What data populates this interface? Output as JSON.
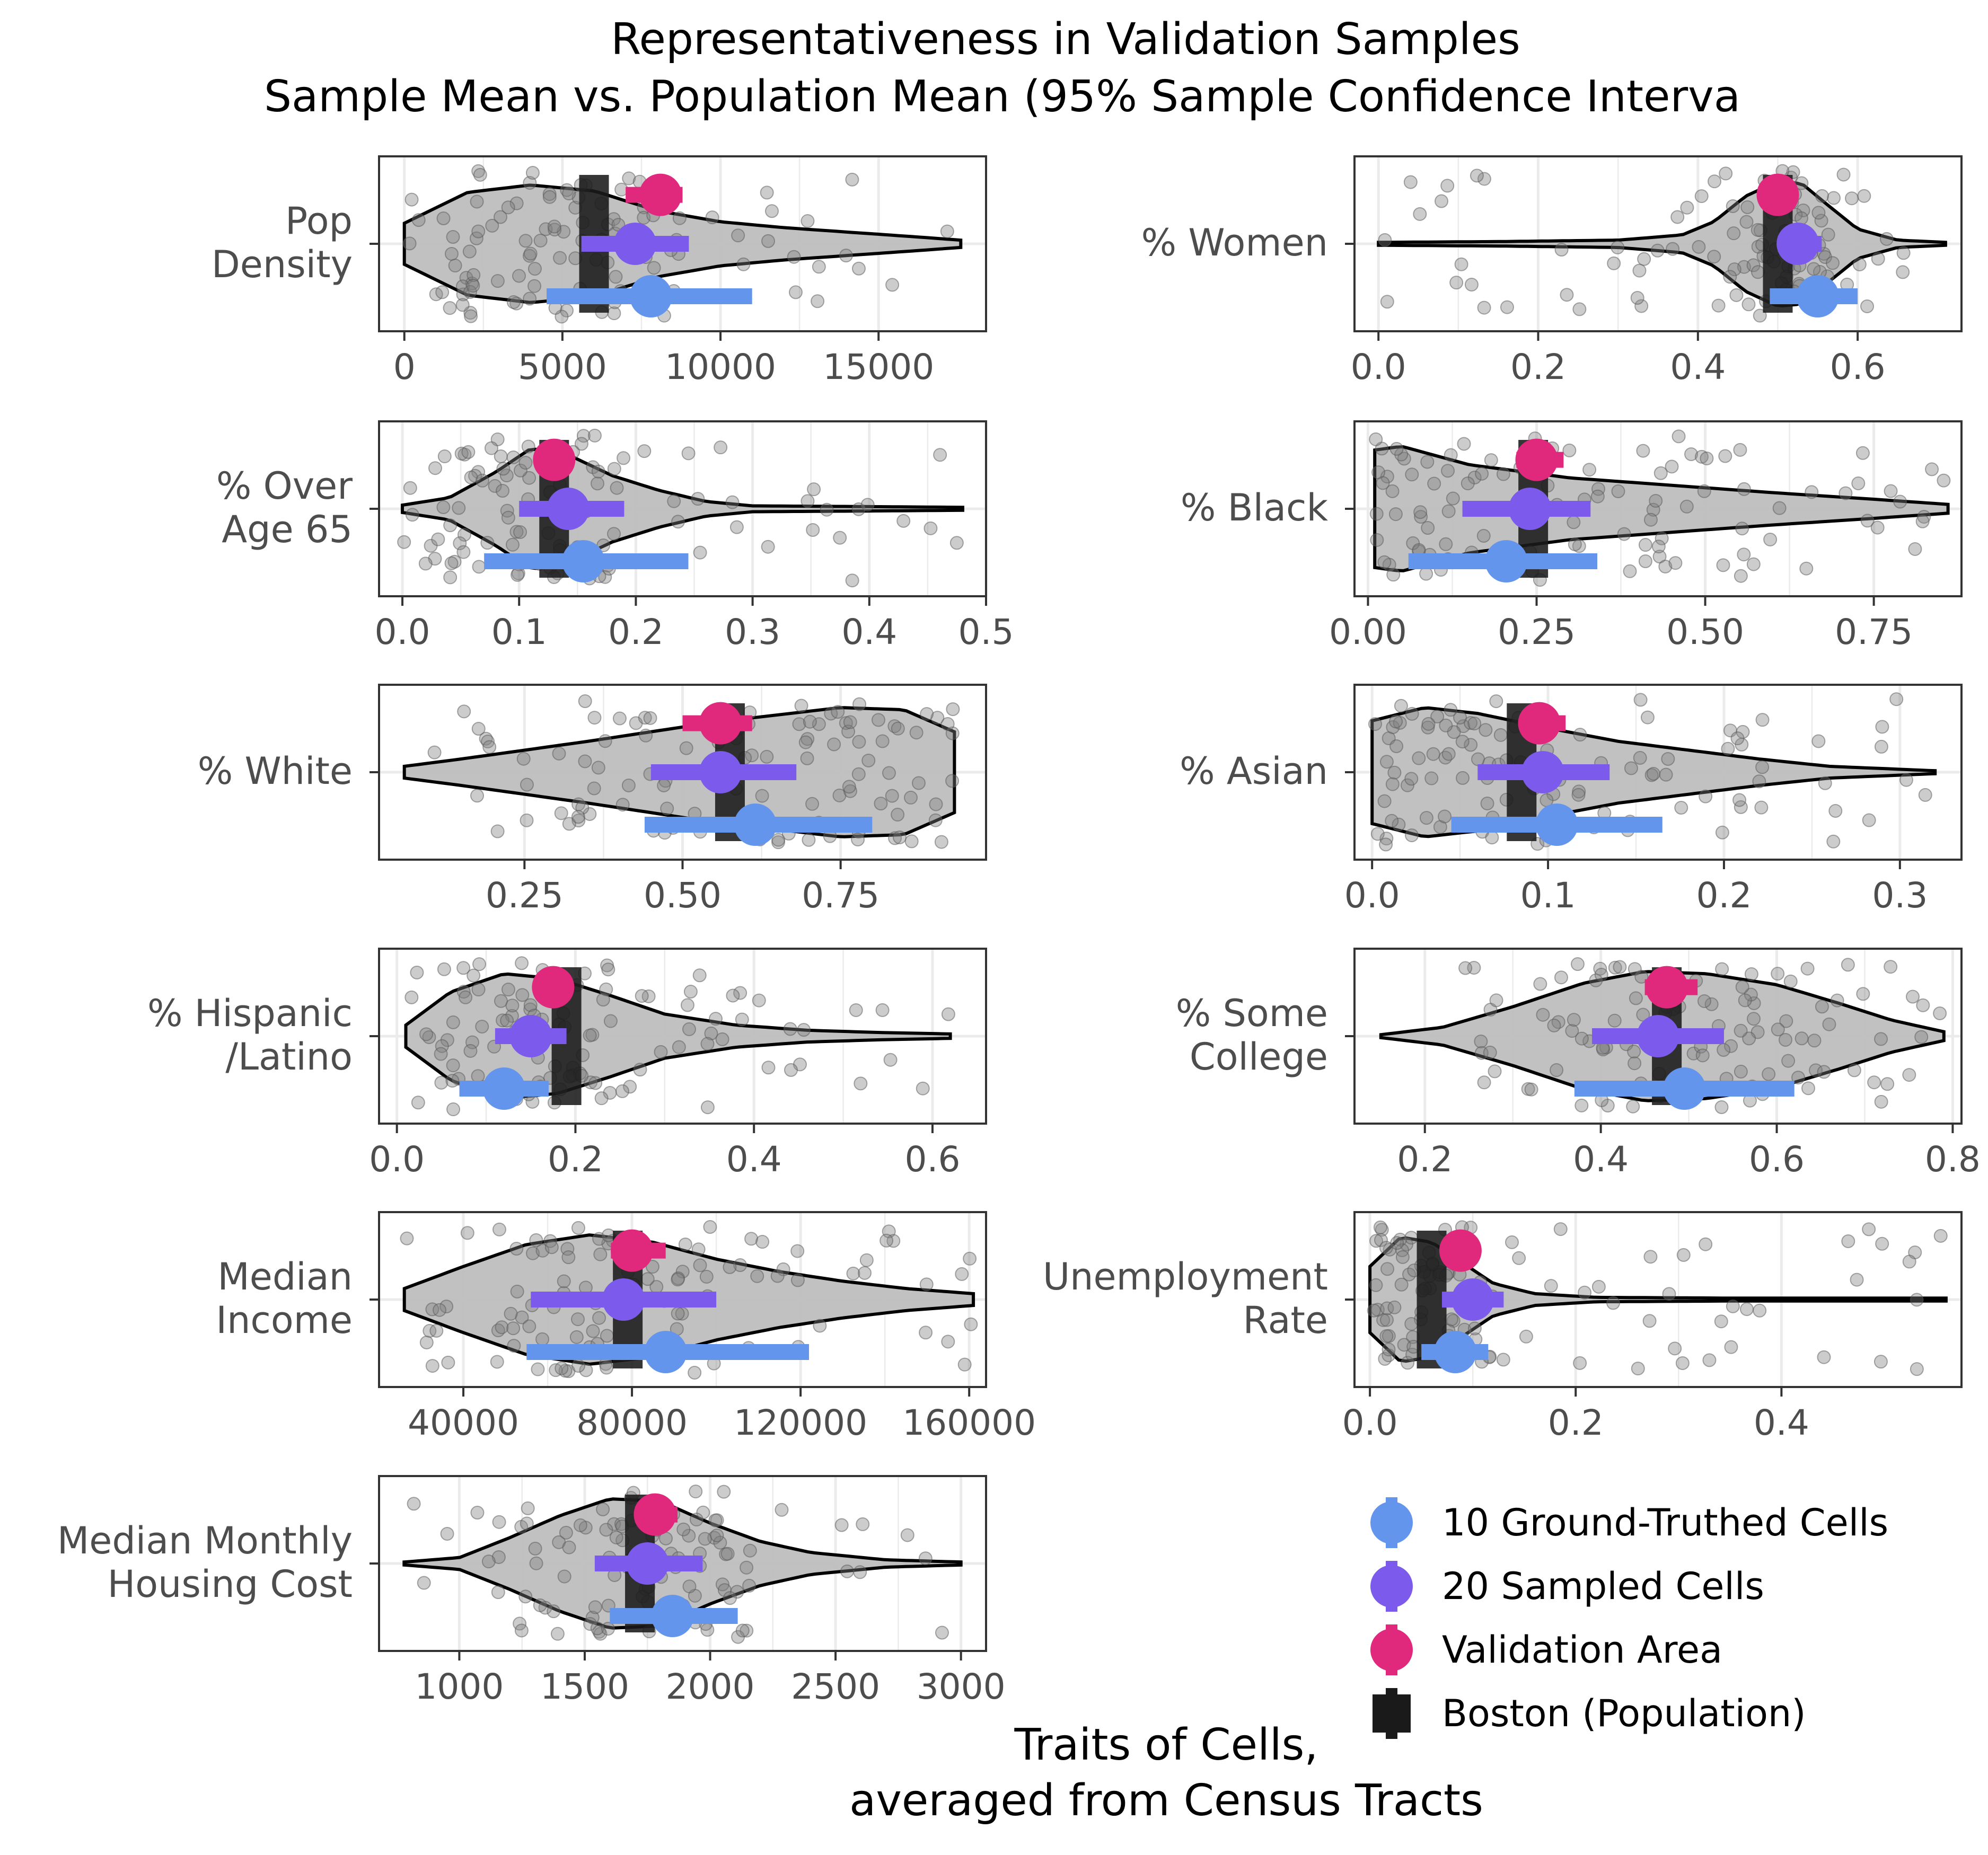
{
  "title_lines": [
    "Representativeness in Validation Samples",
    "Sample Mean vs. Population Mean (95% Sample Confidence Interva"
  ],
  "xlabel_lines": [
    "Traits of Cells,",
    "averaged from Census Tracts"
  ],
  "colors": {
    "ground_truthed": "#6495ED",
    "sampled": "#7B5AEC",
    "validation": "#E0287D",
    "population": "#1A1A1A",
    "violin_fill": "#BEBEBE",
    "points": "#7F7F7F",
    "panel_border": "#333333",
    "grid": "#EBEBEB"
  },
  "legend": {
    "placement": "bottom-right",
    "entries": [
      {
        "label": "10 Ground-Truthed Cells",
        "key": "ground_truthed",
        "shape": "circle-bar"
      },
      {
        "label": "20 Sampled Cells",
        "key": "sampled",
        "shape": "circle-bar"
      },
      {
        "label": "Validation Area",
        "key": "validation",
        "shape": "circle-bar"
      },
      {
        "label": "Boston (Population)",
        "key": "population",
        "shape": "square-bar"
      }
    ]
  },
  "chart_data": [
    {
      "type": "violin",
      "trait": "Pop Density",
      "label_lines": [
        "Pop",
        "Density"
      ],
      "xlim": [
        -800,
        18400
      ],
      "ticks": [
        0,
        5000,
        10000,
        15000
      ],
      "tick_labels": [
        "0",
        "5000",
        "10000",
        "15000"
      ],
      "population_mean": 6000,
      "validation": {
        "mean": 8100,
        "ci": [
          7000,
          8800
        ]
      },
      "sampled": {
        "mean": 7300,
        "ci": [
          5600,
          9000
        ]
      },
      "ground_truthed": {
        "mean": 7800,
        "ci": [
          4500,
          11000
        ]
      },
      "violin_profile": [
        [
          0,
          0.28
        ],
        [
          2000,
          0.7
        ],
        [
          4000,
          0.8
        ],
        [
          6000,
          0.72
        ],
        [
          8000,
          0.45
        ],
        [
          10000,
          0.3
        ],
        [
          12000,
          0.22
        ],
        [
          14000,
          0.16
        ],
        [
          16000,
          0.1
        ],
        [
          17600,
          0.05
        ]
      ],
      "xrange": [
        0,
        17600
      ]
    },
    {
      "type": "violin",
      "trait": "% Women",
      "label_lines": [
        "% Women"
      ],
      "xlim": [
        -0.03,
        0.73
      ],
      "ticks": [
        0,
        0.2,
        0.4,
        0.6
      ],
      "tick_labels": [
        "0.0",
        "0.2",
        "0.4",
        "0.6"
      ],
      "population_mean": 0.5,
      "validation": {
        "mean": 0.5,
        "ci": [
          0.48,
          0.52
        ]
      },
      "sampled": {
        "mean": 0.525,
        "ci": [
          0.5,
          0.555
        ]
      },
      "ground_truthed": {
        "mean": 0.55,
        "ci": [
          0.49,
          0.6
        ]
      },
      "violin_profile": [
        [
          0,
          0.02
        ],
        [
          0.15,
          0.03
        ],
        [
          0.3,
          0.05
        ],
        [
          0.38,
          0.12
        ],
        [
          0.42,
          0.3
        ],
        [
          0.46,
          0.65
        ],
        [
          0.5,
          0.85
        ],
        [
          0.53,
          0.82
        ],
        [
          0.56,
          0.55
        ],
        [
          0.6,
          0.2
        ],
        [
          0.65,
          0.05
        ],
        [
          0.71,
          0.02
        ]
      ],
      "xrange": [
        0,
        0.71
      ]
    },
    {
      "type": "violin",
      "trait": "% Over Age 65",
      "label_lines": [
        "% Over",
        "Age 65"
      ],
      "xlim": [
        -0.02,
        0.5
      ],
      "ticks": [
        0,
        0.1,
        0.2,
        0.3,
        0.4,
        0.5
      ],
      "tick_labels": [
        "0.0",
        "0.1",
        "0.2",
        "0.3",
        "0.4",
        "0.5"
      ],
      "population_mean": 0.13,
      "validation": {
        "mean": 0.13,
        "ci": [
          0.12,
          0.145
        ]
      },
      "sampled": {
        "mean": 0.142,
        "ci": [
          0.1,
          0.19
        ]
      },
      "ground_truthed": {
        "mean": 0.155,
        "ci": [
          0.07,
          0.245
        ]
      },
      "violin_profile": [
        [
          0,
          0.05
        ],
        [
          0.04,
          0.15
        ],
        [
          0.08,
          0.5
        ],
        [
          0.11,
          0.82
        ],
        [
          0.14,
          0.75
        ],
        [
          0.18,
          0.45
        ],
        [
          0.22,
          0.25
        ],
        [
          0.26,
          0.1
        ],
        [
          0.3,
          0.04
        ],
        [
          0.4,
          0.03
        ],
        [
          0.48,
          0.02
        ]
      ],
      "xrange": [
        0,
        0.48
      ]
    },
    {
      "type": "violin",
      "trait": "% Black",
      "label_lines": [
        "% Black"
      ],
      "xlim": [
        -0.02,
        0.88
      ],
      "ticks": [
        0,
        0.25,
        0.5,
        0.75
      ],
      "tick_labels": [
        "0.00",
        "0.25",
        "0.50",
        "0.75"
      ],
      "population_mean": 0.245,
      "validation": {
        "mean": 0.25,
        "ci": [
          0.22,
          0.29
        ]
      },
      "sampled": {
        "mean": 0.24,
        "ci": [
          0.14,
          0.33
        ]
      },
      "ground_truthed": {
        "mean": 0.205,
        "ci": [
          0.06,
          0.34
        ]
      },
      "violin_profile": [
        [
          0.01,
          0.8
        ],
        [
          0.05,
          0.85
        ],
        [
          0.15,
          0.6
        ],
        [
          0.3,
          0.42
        ],
        [
          0.45,
          0.32
        ],
        [
          0.6,
          0.22
        ],
        [
          0.75,
          0.13
        ],
        [
          0.86,
          0.06
        ]
      ],
      "xrange": [
        0.01,
        0.86
      ]
    },
    {
      "type": "violin",
      "trait": "% White",
      "label_lines": [
        "% White"
      ],
      "xlim": [
        0.02,
        0.98
      ],
      "ticks": [
        0.25,
        0.5,
        0.75
      ],
      "tick_labels": [
        "0.25",
        "0.50",
        "0.75"
      ],
      "population_mean": 0.575,
      "validation": {
        "mean": 0.56,
        "ci": [
          0.5,
          0.61
        ]
      },
      "sampled": {
        "mean": 0.56,
        "ci": [
          0.45,
          0.68
        ]
      },
      "ground_truthed": {
        "mean": 0.615,
        "ci": [
          0.44,
          0.8
        ]
      },
      "violin_profile": [
        [
          0.06,
          0.08
        ],
        [
          0.15,
          0.18
        ],
        [
          0.25,
          0.3
        ],
        [
          0.35,
          0.42
        ],
        [
          0.45,
          0.55
        ],
        [
          0.55,
          0.68
        ],
        [
          0.65,
          0.78
        ],
        [
          0.75,
          0.88
        ],
        [
          0.85,
          0.85
        ],
        [
          0.93,
          0.55
        ]
      ],
      "xrange": [
        0.06,
        0.93
      ]
    },
    {
      "type": "violin",
      "trait": "% Asian",
      "label_lines": [
        "% Asian"
      ],
      "xlim": [
        -0.01,
        0.335
      ],
      "ticks": [
        0,
        0.1,
        0.2,
        0.3
      ],
      "tick_labels": [
        "0.0",
        "0.1",
        "0.2",
        "0.3"
      ],
      "population_mean": 0.085,
      "validation": {
        "mean": 0.095,
        "ci": [
          0.085,
          0.11
        ]
      },
      "sampled": {
        "mean": 0.097,
        "ci": [
          0.06,
          0.135
        ]
      },
      "ground_truthed": {
        "mean": 0.105,
        "ci": [
          0.045,
          0.165
        ]
      },
      "violin_profile": [
        [
          0,
          0.7
        ],
        [
          0.03,
          0.88
        ],
        [
          0.06,
          0.8
        ],
        [
          0.1,
          0.6
        ],
        [
          0.14,
          0.42
        ],
        [
          0.18,
          0.3
        ],
        [
          0.22,
          0.18
        ],
        [
          0.26,
          0.08
        ],
        [
          0.3,
          0.04
        ],
        [
          0.32,
          0.02
        ]
      ],
      "xrange": [
        0,
        0.32
      ]
    },
    {
      "type": "violin",
      "trait": "% Hispanic /Latino",
      "label_lines": [
        "% Hispanic",
        "/Latino"
      ],
      "xlim": [
        -0.02,
        0.66
      ],
      "ticks": [
        0,
        0.2,
        0.4,
        0.6
      ],
      "tick_labels": [
        "0.0",
        "0.2",
        "0.4",
        "0.6"
      ],
      "population_mean": 0.19,
      "validation": {
        "mean": 0.175,
        "ci": [
          0.17,
          0.18
        ]
      },
      "sampled": {
        "mean": 0.15,
        "ci": [
          0.11,
          0.19
        ]
      },
      "ground_truthed": {
        "mean": 0.12,
        "ci": [
          0.07,
          0.17
        ]
      },
      "violin_profile": [
        [
          0.01,
          0.15
        ],
        [
          0.06,
          0.6
        ],
        [
          0.12,
          0.85
        ],
        [
          0.18,
          0.78
        ],
        [
          0.24,
          0.55
        ],
        [
          0.3,
          0.3
        ],
        [
          0.38,
          0.15
        ],
        [
          0.46,
          0.08
        ],
        [
          0.54,
          0.05
        ],
        [
          0.62,
          0.03
        ]
      ],
      "xrange": [
        0.01,
        0.62
      ]
    },
    {
      "type": "violin",
      "trait": "% Some College",
      "label_lines": [
        "% Some",
        "College"
      ],
      "xlim": [
        0.12,
        0.81
      ],
      "ticks": [
        0.2,
        0.4,
        0.6,
        0.8
      ],
      "tick_labels": [
        "0.2",
        "0.4",
        "0.6",
        "0.8"
      ],
      "population_mean": 0.475,
      "validation": {
        "mean": 0.475,
        "ci": [
          0.45,
          0.51
        ]
      },
      "sampled": {
        "mean": 0.465,
        "ci": [
          0.39,
          0.54
        ]
      },
      "ground_truthed": {
        "mean": 0.495,
        "ci": [
          0.37,
          0.62
        ]
      },
      "violin_profile": [
        [
          0.15,
          0.02
        ],
        [
          0.22,
          0.12
        ],
        [
          0.3,
          0.4
        ],
        [
          0.38,
          0.72
        ],
        [
          0.45,
          0.88
        ],
        [
          0.52,
          0.85
        ],
        [
          0.6,
          0.7
        ],
        [
          0.67,
          0.45
        ],
        [
          0.73,
          0.22
        ],
        [
          0.79,
          0.06
        ]
      ],
      "xrange": [
        0.15,
        0.79
      ]
    },
    {
      "type": "violin",
      "trait": "Median Income",
      "label_lines": [
        "Median",
        "Income"
      ],
      "xlim": [
        20000,
        164000
      ],
      "ticks": [
        40000,
        80000,
        120000,
        160000
      ],
      "tick_labels": [
        "40000",
        "80000",
        "120000",
        "160000"
      ],
      "population_mean": 79000,
      "validation": {
        "mean": 80000,
        "ci": [
          75000,
          88000
        ]
      },
      "sampled": {
        "mean": 78000,
        "ci": [
          56000,
          100000
        ]
      },
      "ground_truthed": {
        "mean": 88000,
        "ci": [
          55000,
          122000
        ]
      },
      "violin_profile": [
        [
          26000,
          0.15
        ],
        [
          40000,
          0.45
        ],
        [
          55000,
          0.75
        ],
        [
          70000,
          0.88
        ],
        [
          85000,
          0.78
        ],
        [
          100000,
          0.55
        ],
        [
          115000,
          0.38
        ],
        [
          130000,
          0.25
        ],
        [
          145000,
          0.15
        ],
        [
          161000,
          0.08
        ]
      ],
      "xrange": [
        26000,
        161000
      ]
    },
    {
      "type": "violin",
      "trait": "Unemployment Rate",
      "label_lines": [
        "Unemployment",
        "Rate"
      ],
      "xlim": [
        -0.015,
        0.575
      ],
      "ticks": [
        0,
        0.2,
        0.4
      ],
      "tick_labels": [
        "0.0",
        "0.2",
        "0.4"
      ],
      "population_mean": 0.06,
      "validation": {
        "mean": 0.088,
        "ci": [
          0.075,
          0.1
        ]
      },
      "sampled": {
        "mean": 0.1,
        "ci": [
          0.07,
          0.13
        ]
      },
      "ground_truthed": {
        "mean": 0.083,
        "ci": [
          0.05,
          0.115
        ]
      },
      "violin_profile": [
        [
          0,
          0.45
        ],
        [
          0.03,
          0.85
        ],
        [
          0.06,
          0.78
        ],
        [
          0.09,
          0.5
        ],
        [
          0.12,
          0.22
        ],
        [
          0.16,
          0.08
        ],
        [
          0.22,
          0.03
        ],
        [
          0.35,
          0.02
        ],
        [
          0.56,
          0.02
        ]
      ],
      "xrange": [
        0,
        0.56
      ]
    },
    {
      "type": "violin",
      "trait": "Median Monthly Housing Cost",
      "label_lines": [
        "Median Monthly",
        "Housing Cost"
      ],
      "xlim": [
        680,
        3100
      ],
      "ticks": [
        1000,
        1500,
        2000,
        2500,
        3000
      ],
      "tick_labels": [
        "1000",
        "1500",
        "2000",
        "2500",
        "3000"
      ],
      "population_mean": 1720,
      "validation": {
        "mean": 1780,
        "ci": [
          1700,
          1870
        ]
      },
      "sampled": {
        "mean": 1750,
        "ci": [
          1540,
          1970
        ]
      },
      "ground_truthed": {
        "mean": 1850,
        "ci": [
          1600,
          2110
        ]
      },
      "violin_profile": [
        [
          780,
          0.02
        ],
        [
          1000,
          0.08
        ],
        [
          1200,
          0.35
        ],
        [
          1400,
          0.65
        ],
        [
          1600,
          0.88
        ],
        [
          1800,
          0.85
        ],
        [
          2000,
          0.55
        ],
        [
          2200,
          0.3
        ],
        [
          2400,
          0.15
        ],
        [
          2700,
          0.05
        ],
        [
          3000,
          0.02
        ]
      ],
      "xrange": [
        780,
        3000
      ]
    }
  ]
}
